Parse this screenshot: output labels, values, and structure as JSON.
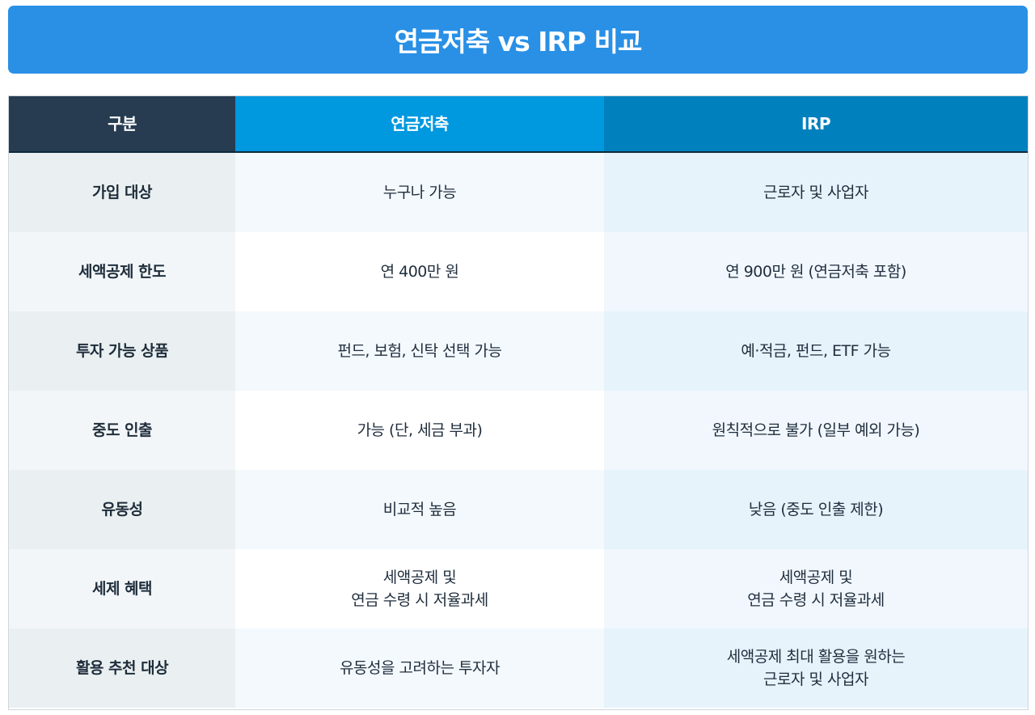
{
  "title": "연금저축 vs IRP 비교",
  "colors": {
    "banner": "#2990e6",
    "header_category": "#273c51",
    "header_pension": "#0098df",
    "header_irp": "#0080bd"
  },
  "table": {
    "headers": [
      "구분",
      "연금저축",
      "IRP"
    ],
    "rows": [
      {
        "label": "가입 대상",
        "pension": "누구나 가능",
        "irp": "근로자 및 사업자"
      },
      {
        "label": "세액공제 한도",
        "pension": "연 400만 원",
        "irp": "연 900만 원 (연금저축 포함)"
      },
      {
        "label": "투자 가능 상품",
        "pension": "펀드, 보험, 신탁 선택 가능",
        "irp": "예·적금, 펀드, ETF 가능"
      },
      {
        "label": "중도 인출",
        "pension": "가능 (단, 세금 부과)",
        "irp": "원칙적으로 불가 (일부 예외 가능)"
      },
      {
        "label": "유동성",
        "pension": "비교적 높음",
        "irp": "낮음 (중도 인출 제한)"
      },
      {
        "label": "세제 혜택",
        "pension": "세액공제 및\n연금 수령 시 저율과세",
        "irp": "세액공제 및\n연금 수령 시 저율과세"
      },
      {
        "label": "활용 추천 대상",
        "pension": "유동성을 고려하는 투자자",
        "irp": "세액공제 최대 활용을 원하는\n근로자 및 사업자"
      }
    ]
  }
}
